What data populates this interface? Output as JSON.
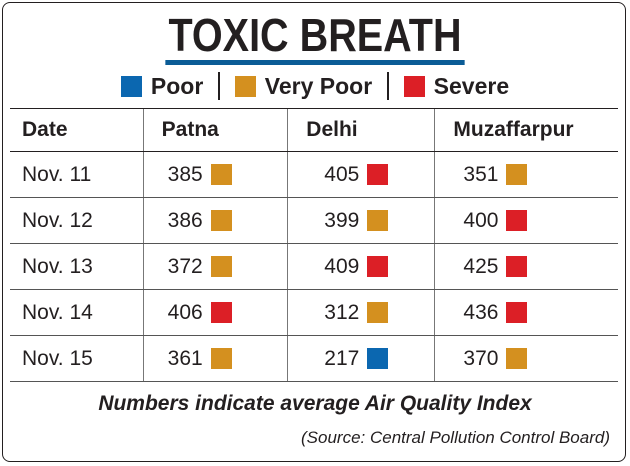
{
  "title": "TOXIC BREATH",
  "colors": {
    "poor": "#0b67b0",
    "very_poor": "#d4901f",
    "severe": "#dc1f26",
    "title_underline": "#0b5c96"
  },
  "legend": [
    {
      "label": "Poor",
      "color": "#0b67b0"
    },
    {
      "label": "Very Poor",
      "color": "#d4901f"
    },
    {
      "label": "Severe",
      "color": "#dc1f26"
    }
  ],
  "chart_data": {
    "type": "table",
    "columns": [
      "Date",
      "Patna",
      "Delhi",
      "Muzaffarpur"
    ],
    "rows": [
      {
        "date": "Nov. 11",
        "values": [
          {
            "value": "385",
            "category": "Very Poor"
          },
          {
            "value": "405",
            "category": "Severe"
          },
          {
            "value": "351",
            "category": "Very Poor"
          }
        ]
      },
      {
        "date": "Nov. 12",
        "values": [
          {
            "value": "386",
            "category": "Very Poor"
          },
          {
            "value": "399",
            "category": "Very Poor"
          },
          {
            "value": "400",
            "category": "Severe"
          }
        ]
      },
      {
        "date": "Nov. 13",
        "values": [
          {
            "value": "372",
            "category": "Very Poor"
          },
          {
            "value": "409",
            "category": "Severe"
          },
          {
            "value": "425",
            "category": "Severe"
          }
        ]
      },
      {
        "date": "Nov. 14",
        "values": [
          {
            "value": "406",
            "category": "Severe"
          },
          {
            "value": "312",
            "category": "Very Poor"
          },
          {
            "value": "436",
            "category": "Severe"
          }
        ]
      },
      {
        "date": "Nov. 15",
        "values": [
          {
            "value": "361",
            "category": "Very Poor"
          },
          {
            "value": "217",
            "category": "Poor"
          },
          {
            "value": "370",
            "category": "Very Poor"
          }
        ]
      }
    ]
  },
  "note": "Numbers indicate average Air Quality Index",
  "source": "(Source: Central Pollution Control Board)"
}
